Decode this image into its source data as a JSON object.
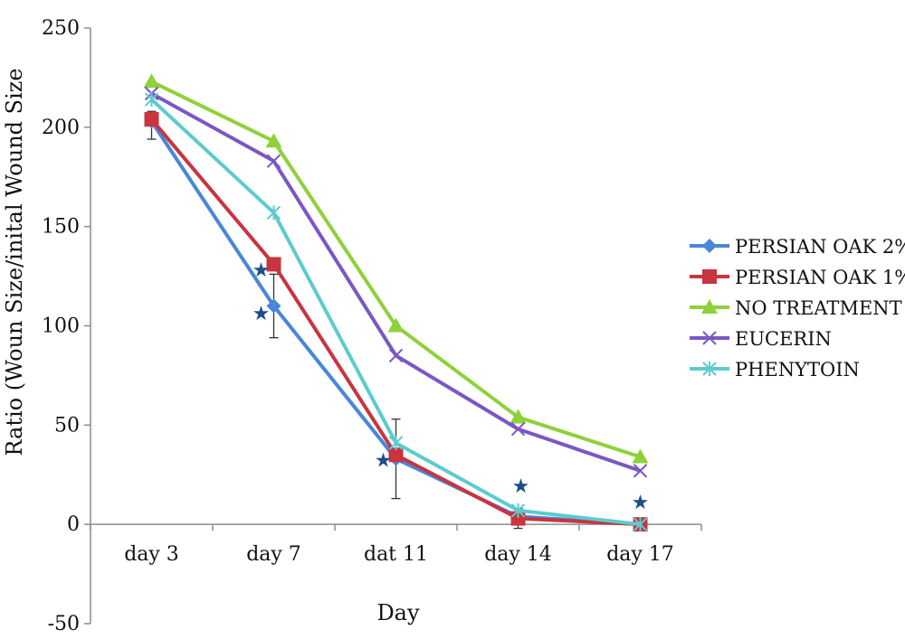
{
  "chart_data": {
    "type": "line",
    "title": "",
    "xlabel": "Day",
    "ylabel": "Ratio (Woun Size/inital Wound Size",
    "categories": [
      "day 3",
      "day 7",
      "dat 11",
      "day 14",
      "day 17"
    ],
    "ylim": [
      -50,
      250
    ],
    "yticks": [
      250,
      200,
      150,
      100,
      50,
      0,
      -50
    ],
    "grid": false,
    "legend_position": "right",
    "series": [
      {
        "name": "PERSIAN OAK 2%",
        "color": "#4a86d9",
        "marker": "diamond",
        "values": [
          203,
          110,
          33,
          4,
          0
        ]
      },
      {
        "name": "PERSIAN OAK 1%",
        "color": "#c8343f",
        "marker": "square",
        "values": [
          204,
          131,
          35,
          3,
          0
        ]
      },
      {
        "name": "NO TREATMENT",
        "color": "#8fd13a",
        "marker": "triangle",
        "values": [
          223,
          193,
          100,
          54,
          34
        ]
      },
      {
        "name": "EUCERIN",
        "color": "#7b57c4",
        "marker": "x",
        "values": [
          217,
          183,
          85,
          48,
          27
        ]
      },
      {
        "name": "PHENYTOIN",
        "color": "#5ccbd0",
        "marker": "asterisk",
        "values": [
          214,
          157,
          41,
          7,
          0
        ]
      }
    ],
    "error_bars": [
      {
        "category": "day 3",
        "low": 194,
        "high": 208
      },
      {
        "category": "day 7",
        "low": 94,
        "high": 126
      },
      {
        "category": "dat 11",
        "low": 13,
        "high": 53
      },
      {
        "category": "day 14",
        "low": -2,
        "high": 8
      }
    ],
    "significance_markers": [
      {
        "category": "day 7",
        "y": 129,
        "offset": "left",
        "symbol": "★"
      },
      {
        "category": "day 7",
        "y": 107,
        "offset": "left",
        "symbol": "★"
      },
      {
        "category": "dat 11",
        "y": 33,
        "offset": "left",
        "symbol": "★"
      },
      {
        "category": "day 14",
        "y": 20,
        "offset": "right",
        "symbol": "★"
      },
      {
        "category": "day 17",
        "y": 12,
        "offset": "none",
        "symbol": "★"
      }
    ],
    "significance_color": "#1f4e8c"
  }
}
